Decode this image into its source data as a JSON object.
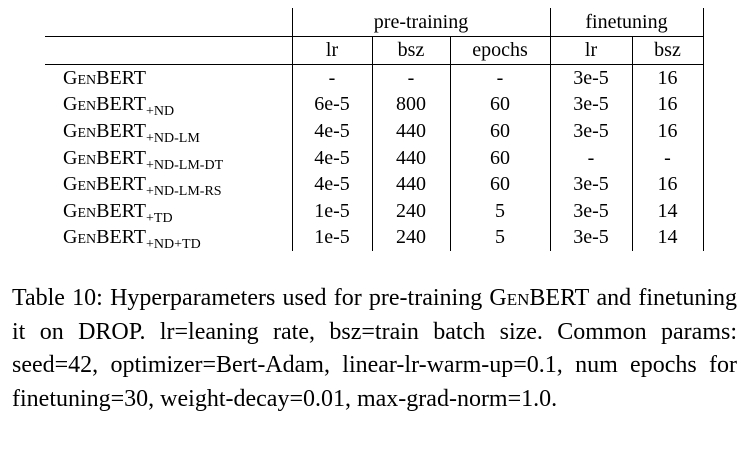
{
  "table": {
    "groups": [
      "pre-training",
      "finetuning"
    ],
    "columns": [
      "lr",
      "bsz",
      "epochs",
      "lr",
      "bsz"
    ],
    "rows": [
      {
        "model": "GenBERT",
        "cells": [
          "-",
          "-",
          "-",
          "3e-5",
          "16"
        ]
      },
      {
        "model": "GenBERT",
        "sub": "+ND",
        "cells": [
          "6e-5",
          "800",
          "60",
          "3e-5",
          "16"
        ]
      },
      {
        "model": "GenBERT",
        "sub": "+ND-LM",
        "cells": [
          "4e-5",
          "440",
          "60",
          "3e-5",
          "16"
        ]
      },
      {
        "model": "GenBERT",
        "sub": "+ND-LM-DT",
        "cells": [
          "4e-5",
          "440",
          "60",
          "-",
          "-"
        ]
      },
      {
        "model": "GenBERT",
        "sub": "+ND-LM-RS",
        "cells": [
          "4e-5",
          "440",
          "60",
          "3e-5",
          "16"
        ]
      },
      {
        "model": "GenBERT",
        "sub": "+TD",
        "cells": [
          "1e-5",
          "240",
          "5",
          "3e-5",
          "14"
        ]
      },
      {
        "model": "GenBERT",
        "sub": "+ND+TD",
        "cells": [
          "1e-5",
          "240",
          "5",
          "3e-5",
          "14"
        ]
      }
    ]
  },
  "caption": {
    "label": "Table 10:",
    "text_before": "Hyperparameters used for pre-training",
    "name": "GenBERT",
    "text_after": "and finetuning it on DROP. lr=leaning rate, bsz=train batch size.  Common params: seed=42, optimizer=Bert-Adam, linear-lr-warm-up=0.1, num epochs for finetuning=30, weight-decay=0.01, max-grad-norm=1.0."
  }
}
